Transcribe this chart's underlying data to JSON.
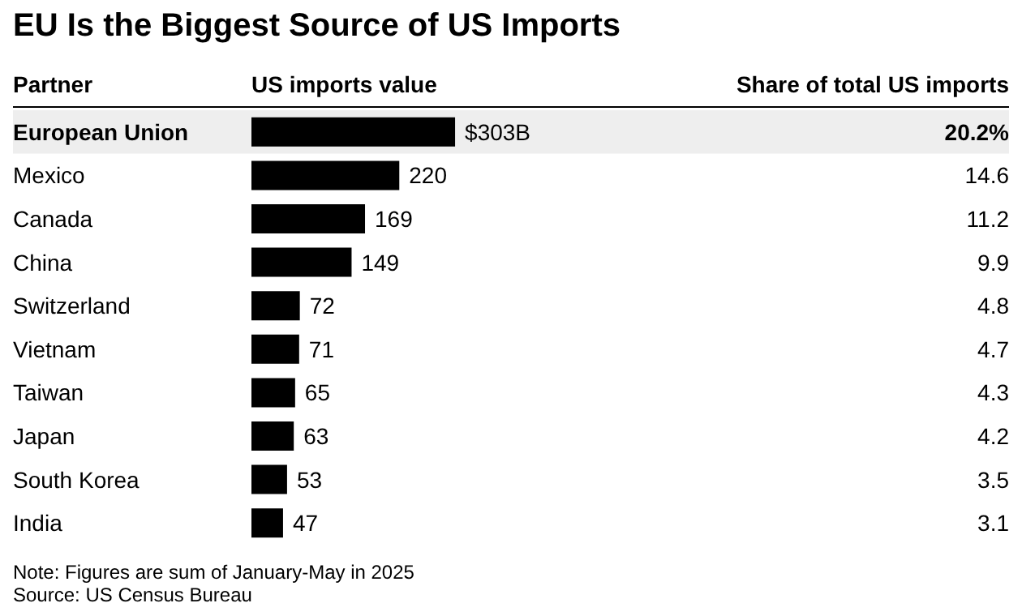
{
  "chart_data": {
    "type": "bar",
    "orientation": "horizontal",
    "title": "EU Is the Biggest Source of US Imports",
    "ylabel": "Partner",
    "xlabel": "US imports value",
    "categories": [
      "European Union",
      "Mexico",
      "Canada",
      "China",
      "Switzerland",
      "Vietnam",
      "Taiwan",
      "Japan",
      "South Korea",
      "India"
    ],
    "values": [
      303,
      220,
      169,
      149,
      72,
      71,
      65,
      63,
      53,
      47
    ],
    "value_labels": [
      "$303B",
      "220",
      "169",
      "149",
      "72",
      "71",
      "65",
      "63",
      "53",
      "47"
    ],
    "color": "#000000",
    "bands": [
      {
        "axis": "y",
        "from": "European Union",
        "to": "European Union",
        "color": "#eeeeee"
      }
    ],
    "annotations": [
      "Share of total US imports",
      "20.2%",
      "14.6",
      "11.2",
      "9.9",
      "4.8",
      "4.7",
      "4.3",
      "4.2",
      "3.5",
      "3.1",
      "Note: Figures are sum of January-May in 2025",
      "Source: US Census Bureau"
    ]
  }
}
